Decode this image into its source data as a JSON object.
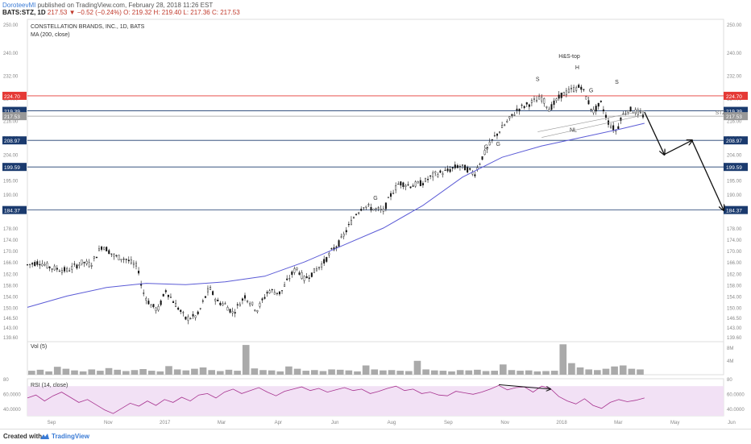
{
  "header": {
    "user": "DoroteevMI",
    "published": "published on TradingView.com, February 28, 2018 11:26 EST",
    "symbol": "BATS:STZ, 1D",
    "last": "217.53",
    "change": "▼ −0.52 (−0.24%)",
    "ohlc": "O: 219.32 H: 219.40 L: 217.36 C: 217.53"
  },
  "legend": {
    "title": "CONSTELLATION BRANDS, INC., 1D, BATS",
    "ma": "MA (200, close)",
    "vol": "Vol (5)",
    "rsi": "RSI (14, close)"
  },
  "footer": {
    "created": "Created with",
    "brand": "TradingView"
  },
  "colors": {
    "candle": "#111111",
    "ma": "#5b5bd6",
    "red_level": "#e53935",
    "blue_level": "#1a3a6e",
    "rsi_line": "#a7338f",
    "rsi_fill": "#f2e1f5",
    "volume": "#aaaaaa"
  },
  "chart_data": [
    {
      "type": "candlestick",
      "title": "CONSTELLATION BRANDS, INC., 1D, BATS",
      "price_axis_ticks": [
        250.0,
        240.0,
        232.0,
        224.0,
        216.0,
        210.0,
        204.0,
        200.0,
        195.0,
        190.0,
        184.0,
        178.0,
        174.0,
        170.0,
        166.0,
        162.0,
        158.0,
        154.0,
        150.0,
        146.5,
        143.0,
        139.6
      ],
      "price_axis_labels": [
        "250.00",
        "240.00",
        "232.00",
        "224.00",
        "216.00",
        "210.00",
        "204.00",
        "200.00",
        "195.00",
        "190.00",
        "184.00",
        "178.00",
        "174.00",
        "170.00",
        "166.00",
        "162.00",
        "158.00",
        "154.00",
        "150.00",
        "146.50",
        "143.00",
        "139.60"
      ],
      "time_axis_labels": [
        "Sep",
        "Nov",
        "2017",
        "Mar",
        "Apr",
        "Jun",
        "Aug",
        "Sep",
        "Nov",
        "2018",
        "Mar",
        "May",
        "Jun"
      ],
      "ylim": [
        139.6,
        250
      ],
      "close_path_points": [
        [
          0,
          165
        ],
        [
          6,
          166
        ],
        [
          12,
          164
        ],
        [
          20,
          163
        ],
        [
          28,
          166
        ],
        [
          32,
          165
        ],
        [
          38,
          172
        ],
        [
          44,
          168
        ],
        [
          50,
          167
        ],
        [
          56,
          164
        ],
        [
          58,
          156
        ],
        [
          62,
          151
        ],
        [
          66,
          149
        ],
        [
          70,
          156
        ],
        [
          74,
          152
        ],
        [
          80,
          146
        ],
        [
          86,
          147
        ],
        [
          92,
          157
        ],
        [
          96,
          152
        ],
        [
          100,
          151
        ],
        [
          104,
          148
        ],
        [
          110,
          154
        ],
        [
          116,
          149
        ],
        [
          122,
          156
        ],
        [
          128,
          155
        ],
        [
          132,
          160
        ],
        [
          136,
          164
        ],
        [
          140,
          160
        ],
        [
          144,
          162
        ],
        [
          150,
          166
        ],
        [
          154,
          170
        ],
        [
          158,
          173
        ],
        [
          162,
          178
        ],
        [
          166,
          183
        ],
        [
          170,
          186
        ],
        [
          174,
          185
        ],
        [
          180,
          184
        ],
        [
          184,
          190
        ],
        [
          188,
          194
        ],
        [
          194,
          193
        ],
        [
          200,
          194
        ],
        [
          206,
          197
        ],
        [
          212,
          198
        ],
        [
          218,
          200
        ],
        [
          222,
          199
        ],
        [
          226,
          197
        ],
        [
          230,
          203
        ],
        [
          236,
          210
        ],
        [
          242,
          215
        ],
        [
          248,
          220
        ],
        [
          254,
          222
        ],
        [
          260,
          224
        ],
        [
          264,
          220
        ],
        [
          270,
          225
        ],
        [
          276,
          227
        ],
        [
          280,
          228
        ],
        [
          284,
          222
        ],
        [
          286,
          219
        ],
        [
          290,
          222
        ],
        [
          294,
          215
        ],
        [
          298,
          212
        ],
        [
          300,
          217
        ],
        [
          304,
          220
        ],
        [
          308,
          219
        ],
        [
          312,
          217.5
        ]
      ],
      "ma200_points": [
        [
          0,
          150
        ],
        [
          20,
          154
        ],
        [
          40,
          157
        ],
        [
          60,
          158.5
        ],
        [
          80,
          158
        ],
        [
          100,
          159
        ],
        [
          120,
          161
        ],
        [
          140,
          166
        ],
        [
          160,
          172
        ],
        [
          180,
          178
        ],
        [
          200,
          186
        ],
        [
          220,
          196
        ],
        [
          240,
          203
        ],
        [
          260,
          207
        ],
        [
          280,
          210
        ],
        [
          300,
          213
        ],
        [
          312,
          215
        ]
      ],
      "horizontal_levels": [
        {
          "label": "224.70",
          "value": 224.7,
          "color": "#e53935"
        },
        {
          "label": "219.39",
          "value": 219.39,
          "color": "#1a3a6e"
        },
        {
          "label": "217.53",
          "value": 217.53,
          "color": "#999999"
        },
        {
          "label": "208.97",
          "value": 208.97,
          "color": "#1a3a6e"
        },
        {
          "label": "199.59",
          "value": 199.59,
          "color": "#1a3a6e"
        },
        {
          "label": "184.37",
          "value": 184.37,
          "color": "#1a3a6e"
        }
      ],
      "annotations": [
        {
          "text": "H&S-top",
          "x": 274,
          "y": 238
        },
        {
          "text": "S",
          "x": 258,
          "y": 230
        },
        {
          "text": "H",
          "x": 278,
          "y": 234
        },
        {
          "text": "S",
          "x": 298,
          "y": 229
        },
        {
          "text": "G",
          "x": 285,
          "y": 226
        },
        {
          "text": "NL",
          "x": 276,
          "y": 212
        },
        {
          "text": "G",
          "x": 232,
          "y": 206
        },
        {
          "text": "G",
          "x": 238,
          "y": 207
        },
        {
          "text": "G",
          "x": 176,
          "y": 188
        }
      ],
      "symbol_tag": "STZ",
      "forecast_path": [
        [
          312,
          219
        ],
        [
          322,
          204
        ],
        [
          336,
          208.97
        ],
        [
          352,
          184.37
        ]
      ]
    },
    {
      "type": "bar",
      "title": "Vol (5)",
      "axis_labels": [
        "8M",
        "4M"
      ],
      "values": [
        1.2,
        1.5,
        1.0,
        2.4,
        1.8,
        1.3,
        1.0,
        1.6,
        1.2,
        2.0,
        1.5,
        1.1,
        1.4,
        1.7,
        1.2,
        1.0,
        2.6,
        1.6,
        1.3,
        1.8,
        2.2,
        1.4,
        1.1,
        1.5,
        1.2,
        9.0,
        1.9,
        1.4,
        1.3,
        1.0,
        2.5,
        1.8,
        1.2,
        1.4,
        1.1,
        1.6,
        1.5,
        1.3,
        1.0,
        2.8,
        1.6,
        1.3,
        1.4,
        1.2,
        1.1,
        4.2,
        1.6,
        1.3,
        1.2,
        1.0,
        1.4,
        1.3,
        1.5,
        1.1,
        1.2,
        3.1,
        1.4,
        1.2,
        1.3,
        1.0,
        1.1,
        1.2,
        9.2,
        3.5,
        2.2,
        1.6,
        1.4,
        1.8,
        2.5,
        2.8,
        1.8,
        1.6
      ]
    },
    {
      "type": "line",
      "title": "RSI (14, close)",
      "axis_labels": [
        "80",
        "60.0000",
        "40.0000"
      ],
      "ylim": [
        30,
        80
      ],
      "band": [
        30,
        70
      ],
      "values": [
        54,
        58,
        50,
        57,
        62,
        55,
        48,
        52,
        45,
        38,
        33,
        40,
        47,
        43,
        50,
        44,
        52,
        48,
        55,
        50,
        58,
        60,
        54,
        62,
        66,
        60,
        64,
        68,
        62,
        57,
        63,
        66,
        69,
        64,
        67,
        62,
        65,
        68,
        64,
        66,
        60,
        63,
        67,
        70,
        64,
        66,
        60,
        62,
        58,
        57,
        63,
        61,
        59,
        62,
        66,
        71,
        65,
        68,
        69,
        62,
        70,
        67,
        56,
        50,
        46,
        53,
        44,
        40,
        48,
        52,
        49,
        51,
        54
      ]
    }
  ]
}
